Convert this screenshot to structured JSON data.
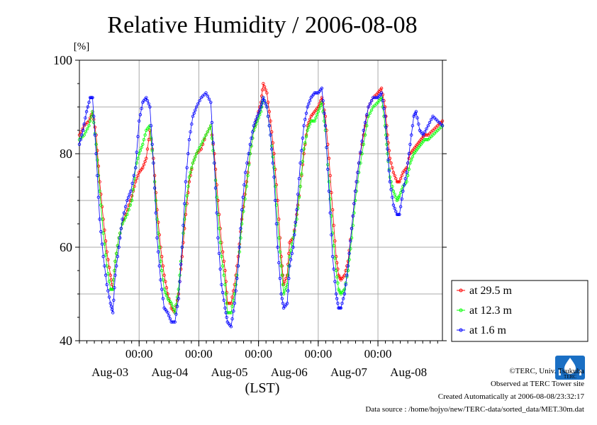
{
  "chart_data": {
    "type": "line",
    "title": "Relative Humidity / 2006-08-08",
    "ylabel": "[%]",
    "xlabel": "(LST)",
    "ylim": [
      40,
      100
    ],
    "yticks": [
      40,
      60,
      80,
      100
    ],
    "ygrid": [
      50,
      60,
      70,
      80,
      90
    ],
    "xlim": [
      0,
      6.08
    ],
    "time_ticks": [
      {
        "x": 1,
        "label": "00:00"
      },
      {
        "x": 2,
        "label": "00:00"
      },
      {
        "x": 3,
        "label": "00:00"
      },
      {
        "x": 4,
        "label": "00:00"
      },
      {
        "x": 5,
        "label": "00:00"
      }
    ],
    "day_labels": [
      {
        "x": 0.5,
        "label": "Aug-03"
      },
      {
        "x": 1.5,
        "label": "Aug-04"
      },
      {
        "x": 2.5,
        "label": "Aug-05"
      },
      {
        "x": 3.5,
        "label": "Aug-06"
      },
      {
        "x": 4.5,
        "label": "Aug-07"
      },
      {
        "x": 5.5,
        "label": "Aug-08"
      }
    ],
    "x_unit": "days since start of plotted period (tick x=1 is 00:00 Aug-04)",
    "legend_position": "right-bottom",
    "series": [
      {
        "name": "at 29.5 m",
        "color": "#ff0000",
        "points": [
          [
            0,
            84
          ],
          [
            0.08,
            86
          ],
          [
            0.16,
            87
          ],
          [
            0.22,
            89
          ],
          [
            0.28,
            84
          ],
          [
            0.34,
            74
          ],
          [
            0.4,
            66
          ],
          [
            0.46,
            59
          ],
          [
            0.52,
            54
          ],
          [
            0.56,
            51
          ],
          [
            0.6,
            57
          ],
          [
            0.66,
            62
          ],
          [
            0.72,
            65
          ],
          [
            0.8,
            68
          ],
          [
            0.88,
            71
          ],
          [
            0.94,
            74
          ],
          [
            1.0,
            76
          ],
          [
            1.06,
            77
          ],
          [
            1.12,
            79
          ],
          [
            1.18,
            85
          ],
          [
            1.24,
            79
          ],
          [
            1.3,
            68
          ],
          [
            1.36,
            60
          ],
          [
            1.42,
            54
          ],
          [
            1.48,
            50
          ],
          [
            1.54,
            47
          ],
          [
            1.6,
            46
          ],
          [
            1.66,
            50
          ],
          [
            1.72,
            58
          ],
          [
            1.78,
            67
          ],
          [
            1.84,
            74
          ],
          [
            1.9,
            78
          ],
          [
            1.96,
            80
          ],
          [
            2.04,
            81
          ],
          [
            2.12,
            84
          ],
          [
            2.2,
            86
          ],
          [
            2.26,
            80
          ],
          [
            2.32,
            70
          ],
          [
            2.38,
            61
          ],
          [
            2.44,
            55
          ],
          [
            2.48,
            48
          ],
          [
            2.54,
            48
          ],
          [
            2.6,
            52
          ],
          [
            2.66,
            58
          ],
          [
            2.72,
            66
          ],
          [
            2.8,
            74
          ],
          [
            2.86,
            80
          ],
          [
            2.92,
            85
          ],
          [
            2.98,
            88
          ],
          [
            3.04,
            91
          ],
          [
            3.08,
            95
          ],
          [
            3.14,
            93
          ],
          [
            3.2,
            87
          ],
          [
            3.26,
            80
          ],
          [
            3.32,
            70
          ],
          [
            3.38,
            58
          ],
          [
            3.42,
            52
          ],
          [
            3.48,
            54
          ],
          [
            3.52,
            61
          ],
          [
            3.58,
            62
          ],
          [
            3.64,
            67
          ],
          [
            3.7,
            73
          ],
          [
            3.76,
            80
          ],
          [
            3.82,
            86
          ],
          [
            3.88,
            88
          ],
          [
            3.94,
            89
          ],
          [
            4.0,
            90
          ],
          [
            4.06,
            92
          ],
          [
            4.12,
            88
          ],
          [
            4.18,
            79
          ],
          [
            4.24,
            68
          ],
          [
            4.3,
            58
          ],
          [
            4.34,
            54
          ],
          [
            4.38,
            53
          ],
          [
            4.44,
            54
          ],
          [
            4.5,
            57
          ],
          [
            4.56,
            64
          ],
          [
            4.62,
            72
          ],
          [
            4.68,
            78
          ],
          [
            4.76,
            84
          ],
          [
            4.84,
            90
          ],
          [
            4.92,
            92
          ],
          [
            5.0,
            93
          ],
          [
            5.06,
            94
          ],
          [
            5.12,
            90
          ],
          [
            5.16,
            84
          ],
          [
            5.2,
            79
          ],
          [
            5.26,
            76
          ],
          [
            5.32,
            74
          ],
          [
            5.36,
            74
          ],
          [
            5.42,
            76
          ],
          [
            5.48,
            77
          ],
          [
            5.54,
            80
          ],
          [
            5.6,
            81
          ],
          [
            5.66,
            82
          ],
          [
            5.72,
            83
          ],
          [
            5.78,
            84
          ],
          [
            5.84,
            84
          ],
          [
            5.92,
            85
          ],
          [
            6.0,
            86
          ],
          [
            6.08,
            87
          ]
        ]
      },
      {
        "name": "at 12.3 m",
        "color": "#00ff00",
        "points": [
          [
            0,
            83
          ],
          [
            0.08,
            84
          ],
          [
            0.16,
            86
          ],
          [
            0.22,
            89
          ],
          [
            0.28,
            82
          ],
          [
            0.34,
            72
          ],
          [
            0.4,
            63
          ],
          [
            0.46,
            56
          ],
          [
            0.52,
            51
          ],
          [
            0.56,
            51
          ],
          [
            0.6,
            57
          ],
          [
            0.66,
            62
          ],
          [
            0.72,
            65
          ],
          [
            0.8,
            67
          ],
          [
            0.88,
            70
          ],
          [
            0.94,
            77
          ],
          [
            1.0,
            80
          ],
          [
            1.06,
            82
          ],
          [
            1.12,
            85
          ],
          [
            1.18,
            86
          ],
          [
            1.24,
            78
          ],
          [
            1.3,
            66
          ],
          [
            1.36,
            57
          ],
          [
            1.42,
            51
          ],
          [
            1.48,
            49
          ],
          [
            1.54,
            48
          ],
          [
            1.6,
            46
          ],
          [
            1.66,
            51
          ],
          [
            1.72,
            60
          ],
          [
            1.78,
            69
          ],
          [
            1.84,
            75
          ],
          [
            1.9,
            78
          ],
          [
            1.96,
            80
          ],
          [
            2.04,
            82
          ],
          [
            2.12,
            84
          ],
          [
            2.2,
            86
          ],
          [
            2.26,
            78
          ],
          [
            2.32,
            67
          ],
          [
            2.38,
            58
          ],
          [
            2.44,
            52
          ],
          [
            2.48,
            46
          ],
          [
            2.54,
            46
          ],
          [
            2.6,
            50
          ],
          [
            2.66,
            56
          ],
          [
            2.72,
            65
          ],
          [
            2.8,
            73
          ],
          [
            2.86,
            80
          ],
          [
            2.92,
            85
          ],
          [
            2.98,
            87
          ],
          [
            3.04,
            89
          ],
          [
            3.08,
            92
          ],
          [
            3.14,
            90
          ],
          [
            3.2,
            84
          ],
          [
            3.26,
            77
          ],
          [
            3.32,
            65
          ],
          [
            3.38,
            56
          ],
          [
            3.42,
            50
          ],
          [
            3.48,
            52
          ],
          [
            3.52,
            58
          ],
          [
            3.58,
            62
          ],
          [
            3.64,
            66
          ],
          [
            3.7,
            73
          ],
          [
            3.76,
            81
          ],
          [
            3.82,
            85
          ],
          [
            3.88,
            87
          ],
          [
            3.94,
            87
          ],
          [
            4.0,
            89
          ],
          [
            4.06,
            91
          ],
          [
            4.12,
            85
          ],
          [
            4.18,
            74
          ],
          [
            4.24,
            63
          ],
          [
            4.3,
            55
          ],
          [
            4.34,
            51
          ],
          [
            4.38,
            50
          ],
          [
            4.44,
            51
          ],
          [
            4.5,
            55
          ],
          [
            4.56,
            62
          ],
          [
            4.62,
            70
          ],
          [
            4.68,
            76
          ],
          [
            4.76,
            82
          ],
          [
            4.84,
            88
          ],
          [
            4.92,
            90
          ],
          [
            5.0,
            91
          ],
          [
            5.06,
            92
          ],
          [
            5.12,
            86
          ],
          [
            5.16,
            80
          ],
          [
            5.2,
            75
          ],
          [
            5.26,
            72
          ],
          [
            5.32,
            70
          ],
          [
            5.36,
            71
          ],
          [
            5.42,
            73
          ],
          [
            5.48,
            74
          ],
          [
            5.54,
            78
          ],
          [
            5.6,
            80
          ],
          [
            5.66,
            81
          ],
          [
            5.72,
            82
          ],
          [
            5.78,
            83
          ],
          [
            5.84,
            83
          ],
          [
            5.92,
            84
          ],
          [
            6.0,
            85
          ],
          [
            6.08,
            86
          ]
        ]
      },
      {
        "name": "at 1.6 m",
        "color": "#0000ff",
        "points": [
          [
            0,
            82
          ],
          [
            0.06,
            85
          ],
          [
            0.12,
            89
          ],
          [
            0.18,
            92
          ],
          [
            0.22,
            92
          ],
          [
            0.28,
            80
          ],
          [
            0.34,
            66
          ],
          [
            0.4,
            58
          ],
          [
            0.46,
            52
          ],
          [
            0.52,
            48
          ],
          [
            0.56,
            46
          ],
          [
            0.6,
            54
          ],
          [
            0.66,
            60
          ],
          [
            0.72,
            66
          ],
          [
            0.8,
            70
          ],
          [
            0.86,
            72
          ],
          [
            0.94,
            77
          ],
          [
            1.0,
            87
          ],
          [
            1.06,
            91
          ],
          [
            1.12,
            92
          ],
          [
            1.18,
            90
          ],
          [
            1.24,
            78
          ],
          [
            1.3,
            62
          ],
          [
            1.36,
            53
          ],
          [
            1.42,
            47
          ],
          [
            1.48,
            46
          ],
          [
            1.54,
            44
          ],
          [
            1.6,
            44
          ],
          [
            1.66,
            49
          ],
          [
            1.72,
            60
          ],
          [
            1.78,
            74
          ],
          [
            1.84,
            83
          ],
          [
            1.9,
            88
          ],
          [
            1.96,
            90
          ],
          [
            2.04,
            92
          ],
          [
            2.12,
            93
          ],
          [
            2.2,
            91
          ],
          [
            2.26,
            78
          ],
          [
            2.32,
            62
          ],
          [
            2.38,
            52
          ],
          [
            2.44,
            47
          ],
          [
            2.48,
            44
          ],
          [
            2.54,
            43
          ],
          [
            2.6,
            48
          ],
          [
            2.66,
            56
          ],
          [
            2.72,
            68
          ],
          [
            2.78,
            76
          ],
          [
            2.86,
            82
          ],
          [
            2.92,
            86
          ],
          [
            2.98,
            88
          ],
          [
            3.04,
            90
          ],
          [
            3.08,
            92
          ],
          [
            3.14,
            90
          ],
          [
            3.2,
            84
          ],
          [
            3.26,
            75
          ],
          [
            3.32,
            60
          ],
          [
            3.38,
            50
          ],
          [
            3.42,
            47
          ],
          [
            3.48,
            48
          ],
          [
            3.52,
            56
          ],
          [
            3.58,
            60
          ],
          [
            3.64,
            68
          ],
          [
            3.7,
            78
          ],
          [
            3.76,
            86
          ],
          [
            3.82,
            90
          ],
          [
            3.88,
            92
          ],
          [
            3.94,
            93
          ],
          [
            4.0,
            93
          ],
          [
            4.06,
            94
          ],
          [
            4.12,
            86
          ],
          [
            4.18,
            72
          ],
          [
            4.24,
            58
          ],
          [
            4.3,
            50
          ],
          [
            4.34,
            47
          ],
          [
            4.38,
            47
          ],
          [
            4.44,
            50
          ],
          [
            4.5,
            56
          ],
          [
            4.56,
            64
          ],
          [
            4.62,
            72
          ],
          [
            4.68,
            78
          ],
          [
            4.76,
            85
          ],
          [
            4.84,
            90
          ],
          [
            4.92,
            92
          ],
          [
            5.0,
            92
          ],
          [
            5.06,
            93
          ],
          [
            5.12,
            88
          ],
          [
            5.16,
            81
          ],
          [
            5.2,
            74
          ],
          [
            5.26,
            69
          ],
          [
            5.32,
            67
          ],
          [
            5.36,
            67
          ],
          [
            5.42,
            72
          ],
          [
            5.48,
            76
          ],
          [
            5.54,
            82
          ],
          [
            5.6,
            88
          ],
          [
            5.64,
            89
          ],
          [
            5.7,
            85
          ],
          [
            5.76,
            84
          ],
          [
            5.84,
            86
          ],
          [
            5.92,
            88
          ],
          [
            6.0,
            87
          ],
          [
            6.08,
            86
          ]
        ]
      }
    ]
  },
  "credits": {
    "copyright": "©TERC, Univ. Tsukuba",
    "observed": "Observed at TERC Tower site",
    "created": "Created Automatically at 2006-08-08/23:32:17",
    "source": "Data source : /home/hojyo/new/TERC-data/sorted_data/MET.30m.dat"
  },
  "logo": {
    "text": "TERC",
    "color": "#1a6fc4"
  }
}
